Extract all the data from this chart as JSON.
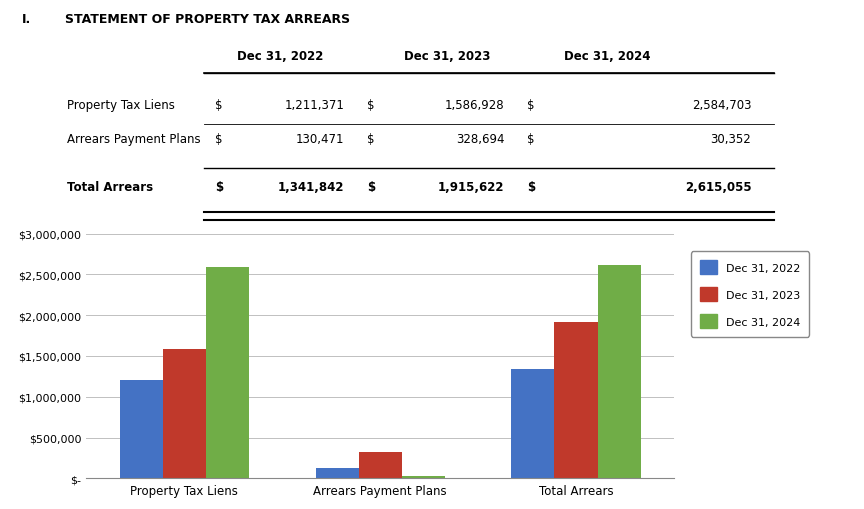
{
  "title_roman": "I.",
  "title_text": "STATEMENT OF PROPERTY TAX ARREARS",
  "header_labels": [
    "Dec 31, 2022",
    "Dec 31, 2023",
    "Dec 31, 2024"
  ],
  "row_labels": [
    "Property Tax Liens",
    "Arrears Payment Plans",
    "Total Arrears"
  ],
  "dollar_signs": [
    "$",
    "$",
    "$"
  ],
  "values_2022": [
    "1,211,371",
    "130,471",
    "1,341,842"
  ],
  "values_2023": [
    "1,586,928",
    "328,694",
    "1,915,622"
  ],
  "values_2024": [
    "2,584,703",
    "30,352",
    "2,615,055"
  ],
  "categories": [
    "Property Tax Liens",
    "Arrears Payment Plans",
    "Total Arrears"
  ],
  "series": [
    {
      "label": "Dec 31, 2022",
      "color": "#4472C4",
      "values": [
        1211371,
        130471,
        1341842
      ]
    },
    {
      "label": "Dec 31, 2023",
      "color": "#C0392B",
      "values": [
        1586928,
        328694,
        1915622
      ]
    },
    {
      "label": "Dec 31, 2024",
      "color": "#70AD47",
      "values": [
        2584703,
        30352,
        2615055
      ]
    }
  ],
  "ylim": [
    0,
    3000000
  ],
  "yticks": [
    0,
    500000,
    1000000,
    1500000,
    2000000,
    2500000,
    3000000
  ],
  "bar_width": 0.22,
  "background_color": "#FFFFFF"
}
